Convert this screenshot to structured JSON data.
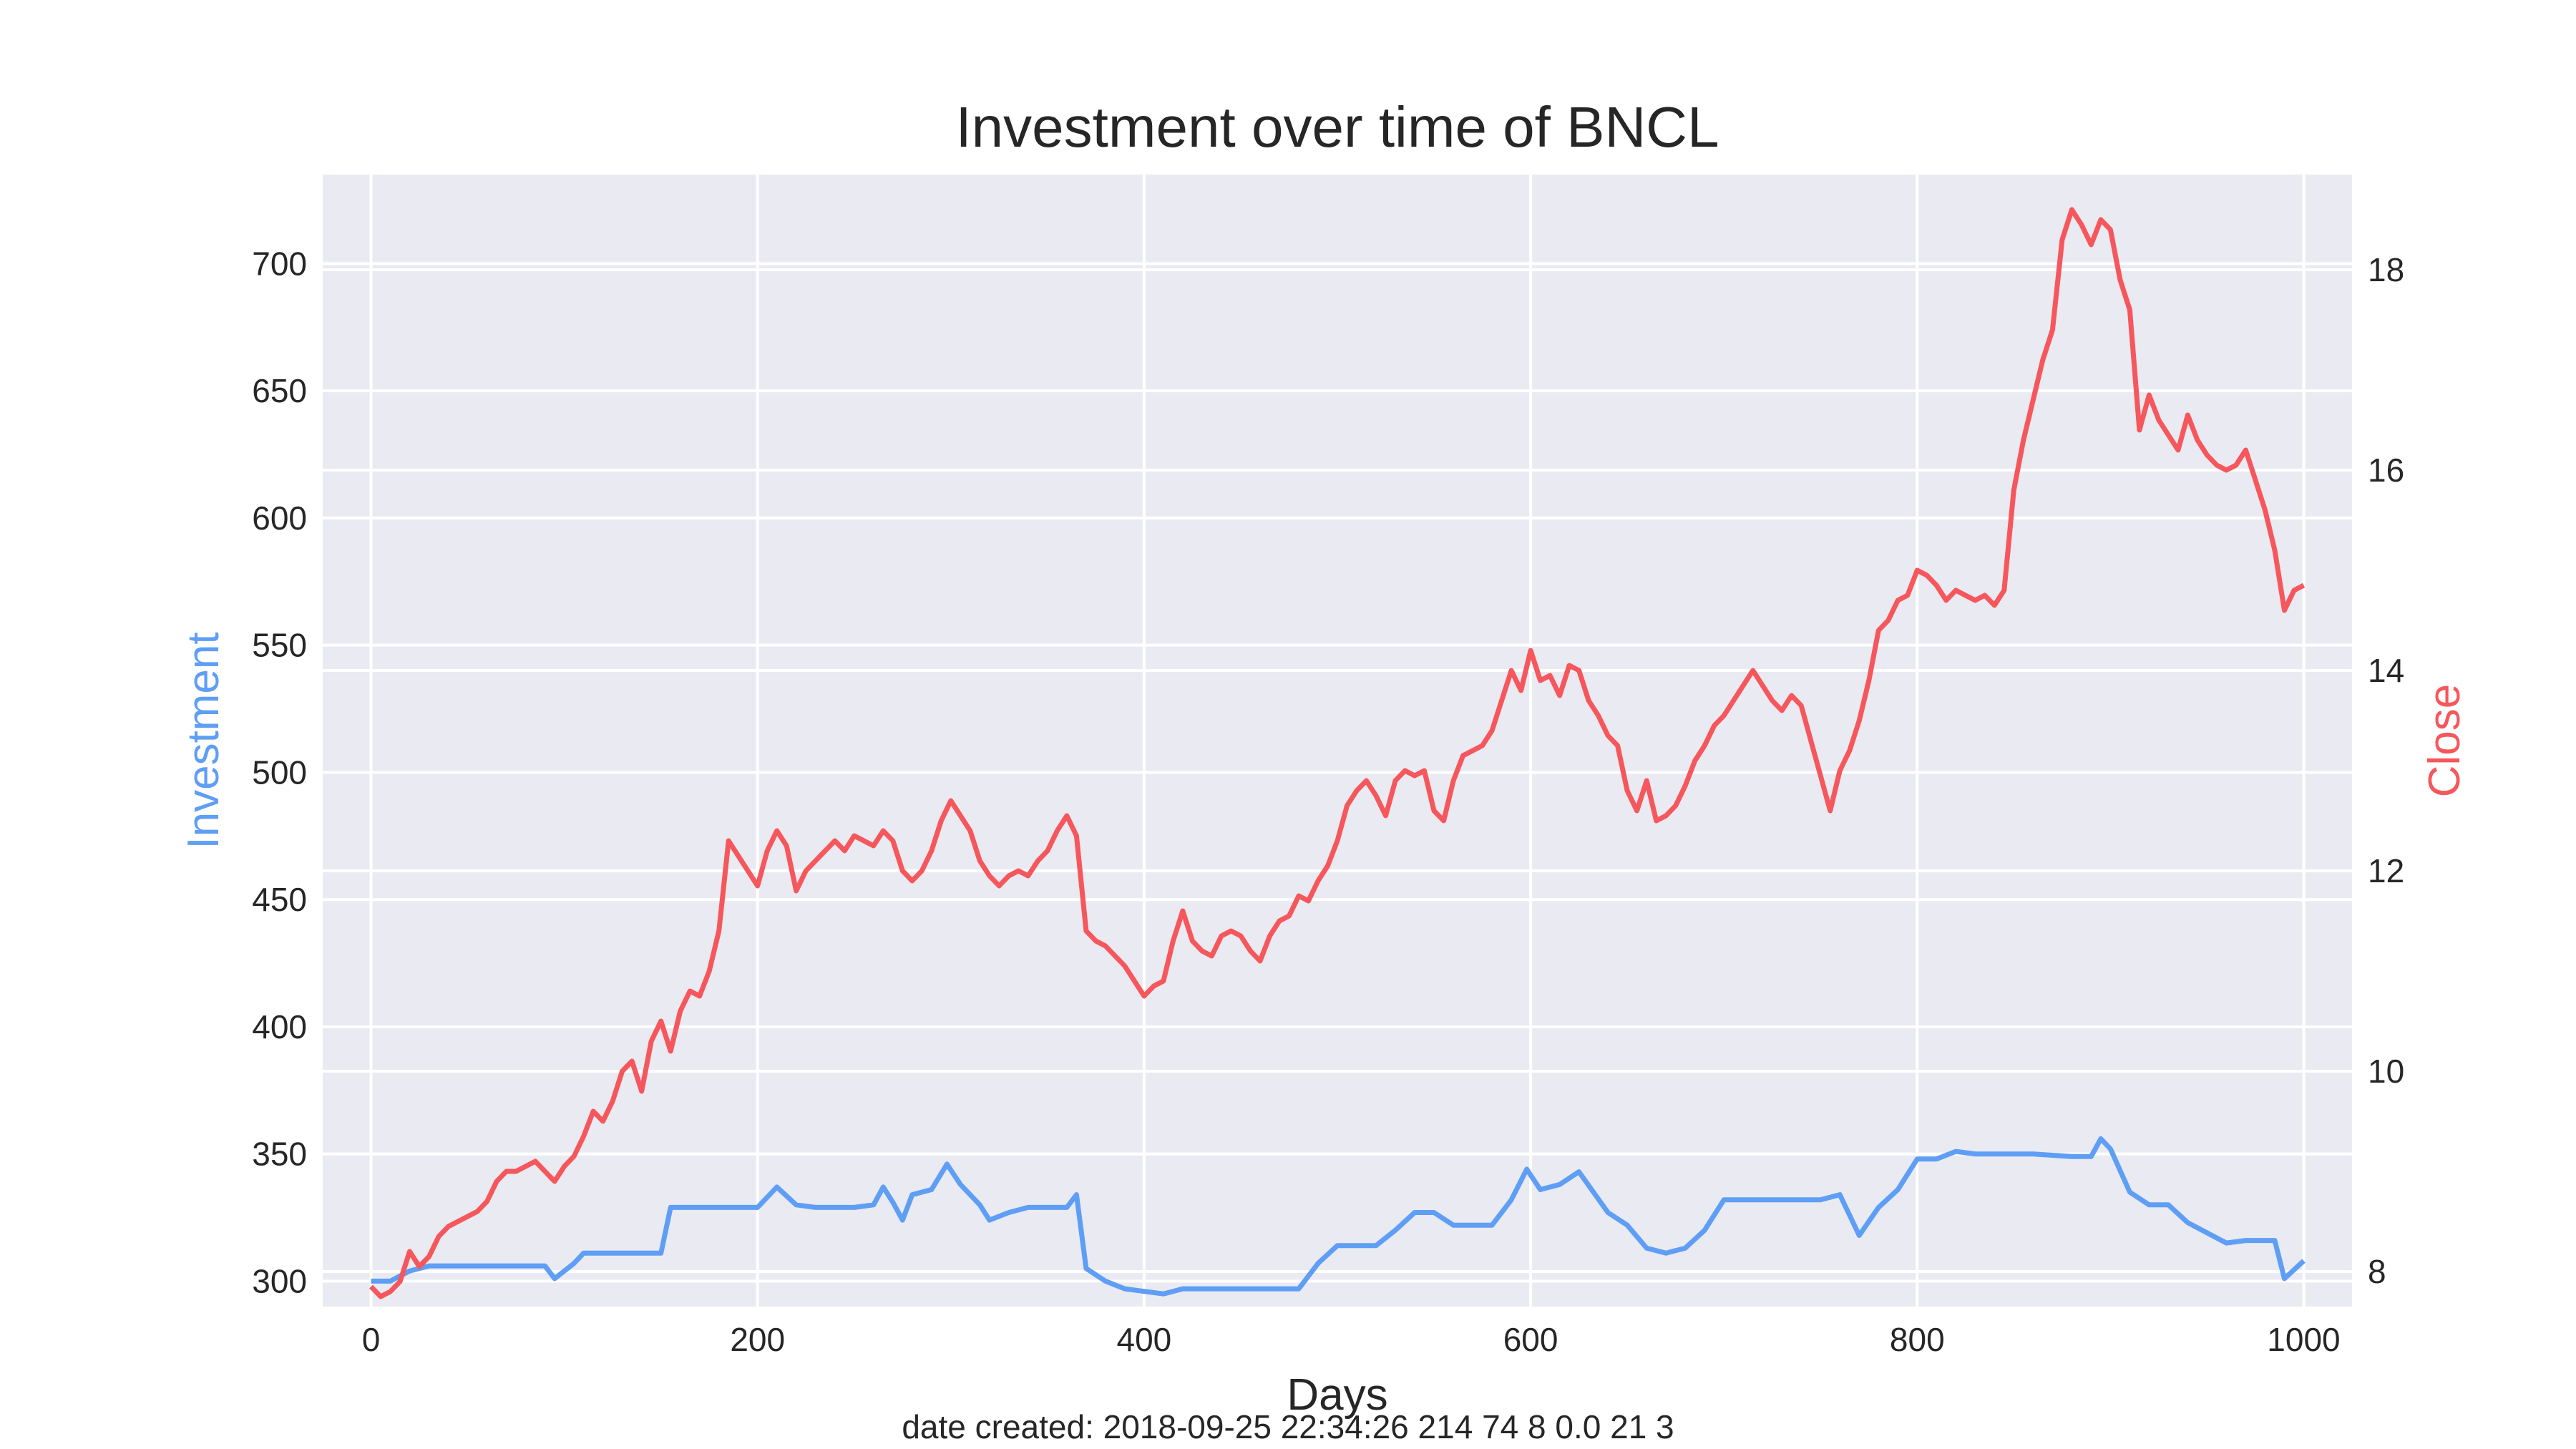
{
  "chart_data": {
    "type": "line",
    "title": "Investment over time of BNCL",
    "xlabel": "Days",
    "ylabel_left": "Investment",
    "ylabel_right": "Close",
    "footer": "date created: 2018-09-25 22:34:26 214 74 8 0.0 21 3",
    "xlim": [
      -25,
      1025
    ],
    "ylim_left": [
      290,
      735
    ],
    "ylim_right": [
      7.65,
      18.95
    ],
    "x_ticks": [
      0,
      200,
      400,
      600,
      800,
      1000
    ],
    "y_left_ticks": [
      300,
      350,
      400,
      450,
      500,
      550,
      600,
      650,
      700
    ],
    "y_right_ticks": [
      8,
      10,
      12,
      14,
      16,
      18
    ],
    "grid": true,
    "colors": {
      "investment": "#5f9ef5",
      "close": "#f5575c",
      "plot_background": "#eaeaf2"
    },
    "series": [
      {
        "name": "Investment",
        "axis": "left",
        "x": [
          0,
          10,
          20,
          30,
          40,
          50,
          60,
          70,
          80,
          90,
          95,
          100,
          105,
          110,
          120,
          130,
          140,
          150,
          155,
          158,
          165,
          180,
          200,
          210,
          220,
          230,
          240,
          250,
          260,
          265,
          270,
          275,
          280,
          290,
          298,
          305,
          315,
          320,
          330,
          340,
          350,
          360,
          365,
          370,
          380,
          390,
          400,
          410,
          420,
          440,
          460,
          480,
          490,
          500,
          510,
          520,
          530,
          540,
          550,
          560,
          580,
          590,
          598,
          605,
          615,
          625,
          640,
          650,
          660,
          670,
          680,
          690,
          700,
          720,
          740,
          750,
          760,
          770,
          780,
          790,
          800,
          810,
          820,
          830,
          840,
          860,
          880,
          890,
          895,
          900,
          910,
          920,
          930,
          940,
          950,
          960,
          970,
          980,
          985,
          990,
          1000
        ],
        "values": [
          300,
          300,
          304,
          306,
          306,
          306,
          306,
          306,
          306,
          306,
          301,
          304,
          307,
          311,
          311,
          311,
          311,
          311,
          329,
          329,
          329,
          329,
          329,
          337,
          330,
          329,
          329,
          329,
          330,
          337,
          331,
          324,
          334,
          336,
          346,
          338,
          330,
          324,
          327,
          329,
          329,
          329,
          334,
          305,
          300,
          297,
          296,
          295,
          297,
          297,
          297,
          297,
          307,
          314,
          314,
          314,
          320,
          327,
          327,
          322,
          322,
          332,
          344,
          336,
          338,
          343,
          327,
          322,
          313,
          311,
          313,
          320,
          332,
          332,
          332,
          332,
          334,
          318,
          329,
          336,
          348,
          348,
          351,
          350,
          350,
          350,
          349,
          349,
          356,
          352,
          335,
          330,
          330,
          323,
          319,
          315,
          316,
          316,
          316,
          301,
          308
        ]
      },
      {
        "name": "Close",
        "axis": "right",
        "x": [
          0,
          5,
          10,
          15,
          20,
          25,
          30,
          35,
          40,
          45,
          50,
          55,
          60,
          65,
          70,
          75,
          80,
          85,
          90,
          95,
          100,
          105,
          110,
          115,
          120,
          125,
          130,
          135,
          140,
          145,
          150,
          155,
          160,
          165,
          170,
          175,
          180,
          185,
          190,
          195,
          200,
          205,
          210,
          215,
          220,
          225,
          230,
          235,
          240,
          245,
          250,
          255,
          260,
          265,
          270,
          275,
          280,
          285,
          290,
          295,
          300,
          305,
          310,
          315,
          320,
          325,
          330,
          335,
          340,
          345,
          350,
          355,
          360,
          365,
          370,
          375,
          380,
          385,
          390,
          395,
          400,
          405,
          410,
          415,
          420,
          425,
          430,
          435,
          440,
          445,
          450,
          455,
          460,
          465,
          470,
          475,
          480,
          485,
          490,
          495,
          500,
          505,
          510,
          515,
          520,
          525,
          530,
          535,
          540,
          545,
          550,
          555,
          560,
          565,
          570,
          575,
          580,
          585,
          590,
          595,
          600,
          605,
          610,
          615,
          620,
          625,
          630,
          635,
          640,
          645,
          650,
          655,
          660,
          665,
          670,
          675,
          680,
          685,
          690,
          695,
          700,
          705,
          710,
          715,
          720,
          725,
          730,
          735,
          740,
          745,
          750,
          755,
          760,
          765,
          770,
          775,
          780,
          785,
          790,
          795,
          800,
          805,
          810,
          815,
          820,
          825,
          830,
          835,
          840,
          845,
          850,
          855,
          860,
          865,
          870,
          875,
          880,
          885,
          890,
          895,
          900,
          905,
          910,
          915,
          920,
          925,
          930,
          935,
          940,
          945,
          950,
          955,
          960,
          965,
          970,
          975,
          980,
          985,
          990,
          995,
          1000
        ],
        "values": [
          7.85,
          7.75,
          7.8,
          7.9,
          8.2,
          8.05,
          8.15,
          8.35,
          8.45,
          8.5,
          8.55,
          8.6,
          8.7,
          8.9,
          9.0,
          9.0,
          9.05,
          9.1,
          9.0,
          8.9,
          9.05,
          9.15,
          9.35,
          9.6,
          9.5,
          9.7,
          10.0,
          10.1,
          9.8,
          10.3,
          10.5,
          10.2,
          10.6,
          10.8,
          10.75,
          11.0,
          11.4,
          12.3,
          12.15,
          12.0,
          11.85,
          12.2,
          12.4,
          12.25,
          11.8,
          12.0,
          12.1,
          12.2,
          12.3,
          12.2,
          12.35,
          12.3,
          12.25,
          12.4,
          12.3,
          12.0,
          11.9,
          12.0,
          12.2,
          12.5,
          12.7,
          12.55,
          12.4,
          12.1,
          11.95,
          11.85,
          11.95,
          12.0,
          11.95,
          12.1,
          12.2,
          12.4,
          12.55,
          12.35,
          11.4,
          11.3,
          11.25,
          11.15,
          11.05,
          10.9,
          10.75,
          10.85,
          10.9,
          11.3,
          11.6,
          11.3,
          11.2,
          11.15,
          11.35,
          11.4,
          11.35,
          11.2,
          11.1,
          11.35,
          11.5,
          11.55,
          11.75,
          11.7,
          11.9,
          12.05,
          12.3,
          12.65,
          12.8,
          12.9,
          12.75,
          12.55,
          12.9,
          13.0,
          12.95,
          13.0,
          12.6,
          12.5,
          12.9,
          13.15,
          13.2,
          13.25,
          13.4,
          13.7,
          14.0,
          13.8,
          14.2,
          13.9,
          13.95,
          13.75,
          14.05,
          14.0,
          13.7,
          13.55,
          13.35,
          13.25,
          12.8,
          12.6,
          12.9,
          12.5,
          12.55,
          12.65,
          12.85,
          13.1,
          13.25,
          13.45,
          13.55,
          13.7,
          13.85,
          14.0,
          13.85,
          13.7,
          13.6,
          13.75,
          13.65,
          13.3,
          12.95,
          12.6,
          13.0,
          13.2,
          13.5,
          13.9,
          14.4,
          14.5,
          14.7,
          14.75,
          15.0,
          14.95,
          14.85,
          14.7,
          14.8,
          14.75,
          14.7,
          14.75,
          14.65,
          14.8,
          15.8,
          16.3,
          16.7,
          17.1,
          17.4,
          18.3,
          18.6,
          18.45,
          18.25,
          18.5,
          18.4,
          17.9,
          17.6,
          16.4,
          16.75,
          16.5,
          16.35,
          16.2,
          16.55,
          16.3,
          16.15,
          16.05,
          16.0,
          16.05,
          16.2,
          15.9,
          15.6,
          15.2,
          14.6,
          14.8,
          14.85
        ]
      }
    ]
  }
}
